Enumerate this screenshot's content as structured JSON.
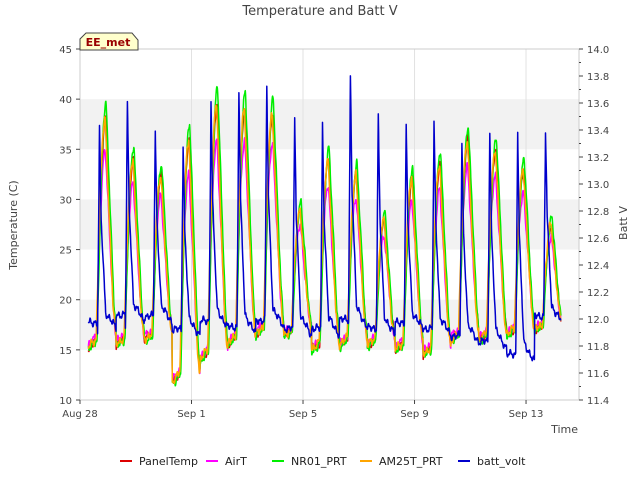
{
  "chart_data": {
    "type": "line",
    "title": "Temperature and Batt V",
    "badge": "EE_met",
    "xlabel": "Time",
    "ylabel": "Temperature (C)",
    "y2label": "Batt V",
    "xlim": [
      0,
      17.9
    ],
    "ylim": [
      10,
      45
    ],
    "y2lim": [
      11.4,
      14.0
    ],
    "x_ticks": [
      {
        "value": 0,
        "label": "Aug 28"
      },
      {
        "value": 4,
        "label": "Sep 1"
      },
      {
        "value": 8,
        "label": "Sep 5"
      },
      {
        "value": 12,
        "label": "Sep 9"
      },
      {
        "value": 16,
        "label": "Sep 13"
      }
    ],
    "y_ticks": [
      "10",
      "15",
      "20",
      "25",
      "30",
      "35",
      "40",
      "45"
    ],
    "y2_ticks": [
      "11.4",
      "11.6",
      "11.8",
      "12.0",
      "12.2",
      "12.4",
      "12.6",
      "12.8",
      "13.0",
      "13.2",
      "13.4",
      "13.6",
      "13.8",
      "14.0"
    ],
    "day_extremes": {
      "x_start": 0.3,
      "min": [
        15.2,
        15.5,
        16,
        11.8,
        14,
        15.5,
        16.5,
        16.5,
        15,
        15.5,
        15.5,
        15,
        14.5,
        16,
        16,
        16.5,
        17
      ],
      "max": [
        38,
        34,
        32.5,
        36,
        39.5,
        39,
        38.5,
        29,
        34,
        32.5,
        28,
        32,
        33.5,
        36,
        35,
        33,
        27.5
      ]
    },
    "series": [
      {
        "name": "PanelTemp",
        "color": "#dd0000",
        "amp_scale": 1.0,
        "offset": 0.0,
        "phase": 0.0
      },
      {
        "name": "AirT",
        "color": "#ff00ff",
        "amp_scale": 0.85,
        "offset": 0.3,
        "phase": 0.01
      },
      {
        "name": "NR01_PRT",
        "color": "#00ee00",
        "amp_scale": 1.08,
        "offset": -0.2,
        "phase": -0.015
      },
      {
        "name": "AM25T_PRT",
        "color": "#ffa500",
        "amp_scale": 1.0,
        "offset": 0.0,
        "phase": 0.02
      },
      {
        "name": "batt_volt",
        "color": "#0000cc",
        "axis": "y2",
        "day_min": [
          11.9,
          11.95,
          11.95,
          11.85,
          11.9,
          11.85,
          11.9,
          11.85,
          11.85,
          11.9,
          11.85,
          11.9,
          11.85,
          11.8,
          11.75,
          11.65,
          11.95
        ],
        "day_max": [
          13.4,
          13.6,
          13.38,
          13.3,
          13.62,
          13.7,
          13.72,
          13.5,
          13.45,
          13.8,
          13.5,
          13.42,
          13.45,
          13.3,
          13.4,
          13.4,
          13.4
        ]
      }
    ],
    "legend_position": "bottom"
  }
}
